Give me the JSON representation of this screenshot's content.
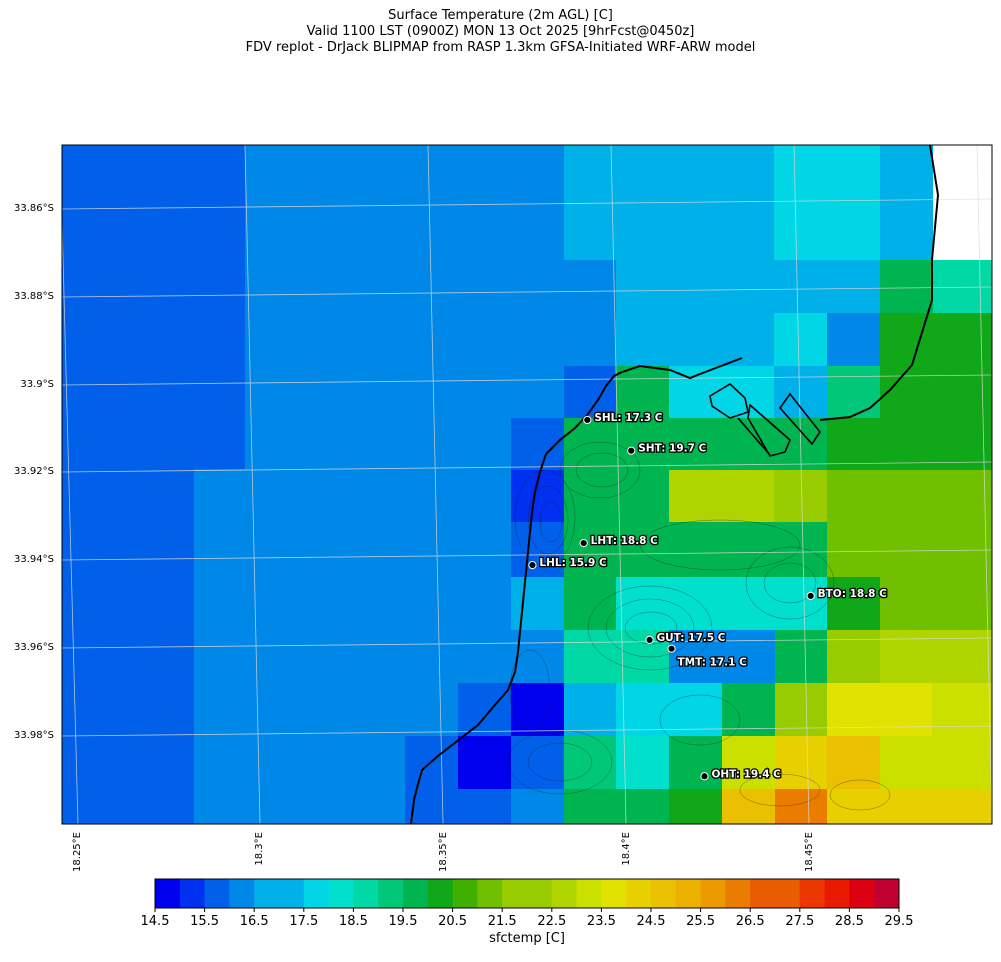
{
  "title": {
    "line1": "Surface Temperature (2m AGL) [C]",
    "line2": "Valid 1100 LST (0900Z) MON 13 Oct 2025 [9hrFcst@0450z]",
    "line3": "FDV replot - DrJack BLIPMAP from RASP 1.3km GFSA-Initiated WRF-ARW model"
  },
  "latitude_labels": [
    "33.86°S",
    "33.88°S",
    "33.9°S",
    "33.92°S",
    "33.94°S",
    "33.96°S",
    "33.98°S"
  ],
  "longitude_labels": [
    "18.25°E",
    "18.3°E",
    "18.35°E",
    "18.4°E",
    "18.45°E"
  ],
  "stations": [
    {
      "code": "SHL",
      "label": "SHL: 17.3 C",
      "lon": 18.39,
      "lat": -33.908,
      "value": 17.3
    },
    {
      "code": "SHT",
      "label": "SHT: 19.7 C",
      "lon": 18.402,
      "lat": -33.915,
      "value": 19.7
    },
    {
      "code": "LHT",
      "label": "LHT: 18.8 C",
      "lon": 18.389,
      "lat": -33.936,
      "value": 18.8
    },
    {
      "code": "LHL",
      "label": "LHL: 15.9 C",
      "lon": 18.375,
      "lat": -33.941,
      "value": 15.9
    },
    {
      "code": "BTO",
      "label": "BTO: 18.8 C",
      "lon": 18.451,
      "lat": -33.948,
      "value": 18.8
    },
    {
      "code": "GUT",
      "label": "GUT: 17.5 C",
      "lon": 18.407,
      "lat": -33.958,
      "value": 17.5
    },
    {
      "code": "TMT",
      "label": "TMT: 17.1 C",
      "lon": 18.413,
      "lat": -33.96,
      "value": 17.1
    },
    {
      "code": "OHT",
      "label": "OHT: 19.4 C",
      "lon": 18.422,
      "lat": -33.989,
      "value": 19.4
    }
  ],
  "colorbar": {
    "label": "sfctemp [C]",
    "tick_labels": [
      "14.5",
      "15.5",
      "16.5",
      "17.5",
      "18.5",
      "19.5",
      "20.5",
      "21.5",
      "22.5",
      "23.5",
      "24.5",
      "25.5",
      "26.5",
      "27.5",
      "28.5",
      "29.5"
    ],
    "min": 14.5,
    "max": 29.5,
    "step": 0.5,
    "colors": [
      "#0000ee",
      "#0030f0",
      "#0060ea",
      "#0088e8",
      "#00b0e8",
      "#00d6e6",
      "#00e0cc",
      "#00d8a6",
      "#00c878",
      "#00b450",
      "#10a818",
      "#40b000",
      "#70c000",
      "#98cc00",
      "#b0d400",
      "#cce000",
      "#e2e200",
      "#e8d000",
      "#eac000",
      "#ecb000",
      "#ec9a00",
      "#ea7c00",
      "#ea5c00",
      "#ec3800",
      "#e81a00",
      "#dc0010",
      "#c00030"
    ]
  },
  "colors": {
    "coastline": "#000000",
    "gridline": "#dcdcdc",
    "station_marker": "#000000"
  }
}
